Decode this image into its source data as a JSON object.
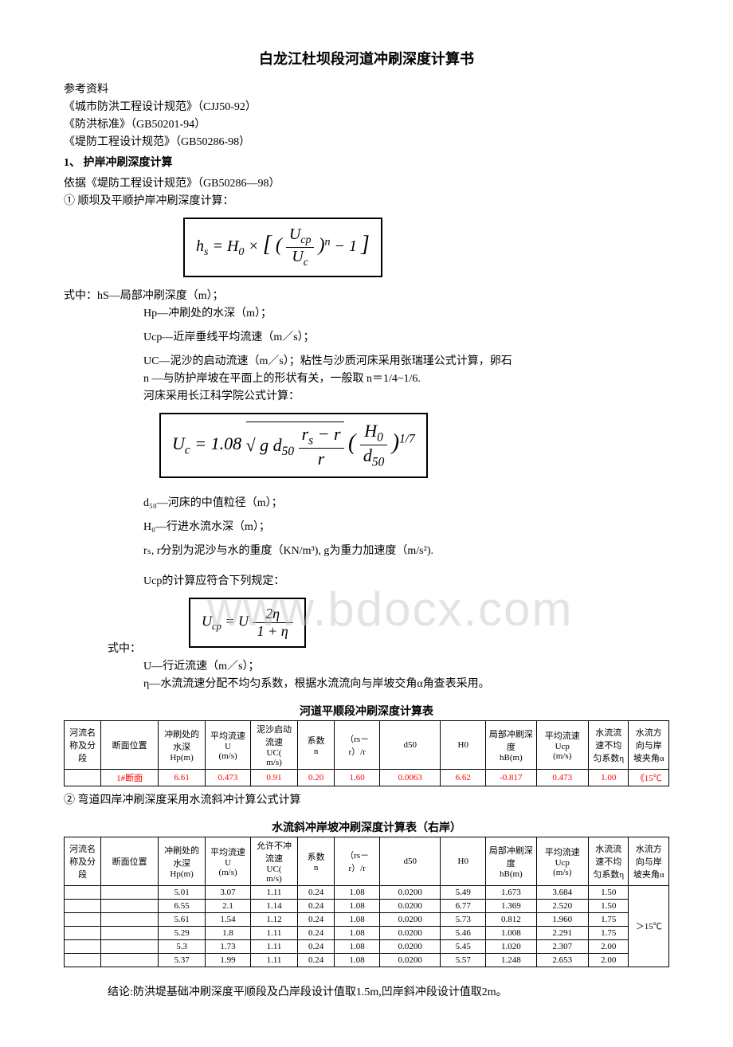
{
  "doc_title": "白龙江杜坝段河道冲刷深度计算书",
  "refs_header": "参考资料",
  "ref1": "《城市防洪工程设计规范》（CJJ50-92）",
  "ref2": "《防洪标准》（GB50201-94）",
  "ref3": "《堤防工程设计规范》（GB50286-98）",
  "sec1_head": "1、 护岸冲刷深度计算",
  "sec1_basis": "依据《堤防工程设计规范》（GB50286—98）",
  "sec1_sub1": "① 顺坝及平顺护岸冲刷深度计算：",
  "formula1": "hₛ = H₀ × [ (U_cp / U_c)ⁿ − 1 ]",
  "def_hs_label": "式中：hS—局部冲刷深度（m）；",
  "def_hp": "Hp—冲刷处的水深（m）；",
  "def_ucp": "Ucp—近岸垂线平均流速（m／s）；",
  "def_uc": "UC—泥沙的启动流速（m／s）；粘性与沙质河床采用张瑞瑾公式计算，卵石",
  "def_n": " n —与防护岸坡在平面上的形状有关，一般取 n＝1/4~1/6.",
  "def_riverbed": "河床采用长江科学院公式计算：",
  "formula2": "U_c = 1.08 √( g d₅₀ (rₛ − r)/r ) · (H₀ / d₅₀)^{1/7}",
  "def_d50": "d₅₀—河床的中值粒径（m）；",
  "def_h0": "H₀—行进水流水深（m）；",
  "def_rs": "rₛ, r分别为泥沙与水的重度（KN/m³), g为重力加速度（m/s²).",
  "def_ucp_rule": "Ucp的计算应符合下列规定：",
  "formula3": "U_cp = U · 2η / (1 + η)",
  "shizhong": "式中：",
  "def_u": "U—行近流速（m／s）；",
  "def_eta": "η—水流流速分配不均匀系数，根据水流流向与岸坡交角α角查表采用。",
  "watermark_text": "www.bdocx.com",
  "table1_title": "河道平顺段冲刷深度计算表",
  "sec1_sub2": "② 弯道四岸冲刷深度采用水流斜冲计算公式计算",
  "table2_title": "水流斜冲岸坡冲刷深度计算表（右岸）",
  "conclusion": "结论:防洪堤基础冲刷深度平顺段及凸岸段设计值取1.5m,凹岸斜冲段设计值取2m。",
  "columns": [
    "河流名称及分段",
    "断面位置",
    "冲刷处的水深 Hp(m)",
    "平均流速 U (m/s)",
    "泥沙启动流速 UC( m/s)",
    "系数 n",
    "（rs－r）/r",
    "d50",
    "H0",
    "局部冲刷深度 hB(m)",
    "平均流速Ucp (m/s)",
    "水流流速不均匀系数η",
    "水流方向与岸坡夹角α"
  ],
  "columns2": [
    "河流名称及分段",
    "断面位置",
    "冲刷处的水深 Hp(m)",
    "平均流速 U (m/s)",
    "允许不冲流速 UC( m/s)",
    "系数 n",
    "（rs－r）/r",
    "d50",
    "H0",
    "局部冲刷深度 hB(m)",
    "平均流速Ucp (m/s)",
    "水流流速不均匀系数η",
    "水流方向与岸坡夹角α"
  ],
  "t1_row": [
    "",
    "1#断面",
    "6.61",
    "0.473",
    "0.91",
    "0.20",
    "1.60",
    "0.0063",
    "6.62",
    "-0.817",
    "0.473",
    "1.00",
    "《15℃"
  ],
  "t1_red_cols": [
    1,
    2,
    3,
    4,
    5,
    6,
    7,
    8,
    9,
    10,
    11,
    12
  ],
  "t2_rows": [
    [
      "",
      "",
      "5.01",
      "3.07",
      "1.11",
      "0.24",
      "1.08",
      "0.0200",
      "5.49",
      "1.673",
      "3.684",
      "1.50"
    ],
    [
      "",
      "",
      "6.55",
      "2.1",
      "1.14",
      "0.24",
      "1.08",
      "0.0200",
      "6.77",
      "1.369",
      "2.520",
      "1.50"
    ],
    [
      "",
      "",
      "5.61",
      "1.54",
      "1.12",
      "0.24",
      "1.08",
      "0.0200",
      "5.73",
      "0.812",
      "1.960",
      "1.75"
    ],
    [
      "",
      "",
      "5.29",
      "1.8",
      "1.11",
      "0.24",
      "1.08",
      "0.0200",
      "5.46",
      "1.008",
      "2.291",
      "1.75"
    ],
    [
      "",
      "",
      "5.3",
      "1.73",
      "1.11",
      "0.24",
      "1.08",
      "0.0200",
      "5.45",
      "1.020",
      "2.307",
      "2.00"
    ],
    [
      "",
      "",
      "5.37",
      "1.99",
      "1.11",
      "0.24",
      "1.08",
      "0.0200",
      "5.57",
      "1.248",
      "2.653",
      "2.00"
    ]
  ],
  "t2_last": "＞15℃",
  "colwidths": [
    "36",
    "60",
    "48",
    "46",
    "48",
    "36",
    "46",
    "64",
    "46",
    "52",
    "54",
    "40",
    "40"
  ]
}
